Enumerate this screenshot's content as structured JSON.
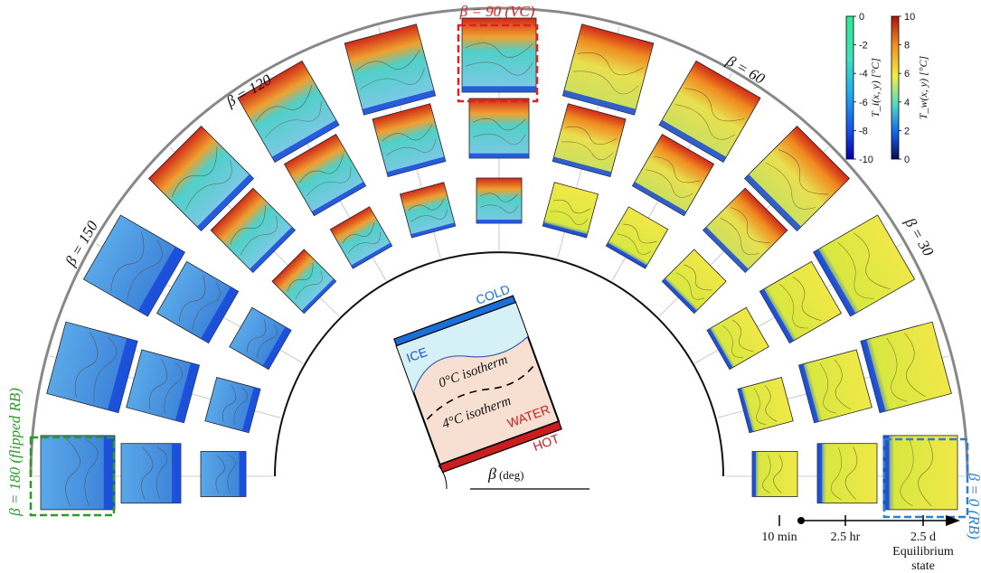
{
  "angles": {
    "top": "β = 90 (VC)",
    "b120": "β = 120",
    "b150": "β = 150",
    "b180": "β = 180 (flipped RB)",
    "b60": "β = 60",
    "b30": "β = 30",
    "b0": "β = 0 (RB)"
  },
  "schematic": {
    "cold": "COLD",
    "ice": "ICE",
    "iso0": "0°C isotherm",
    "iso4": "4°C isotherm",
    "water": "WATER",
    "hot": "HOT",
    "beta": "β",
    "beta_unit": "(deg)"
  },
  "colorbars": {
    "ice_label": "T_i(x, y) [°C]",
    "water_label": "T_w(x, y) [°C]",
    "ice_ticks": [
      "0",
      "-2",
      "-4",
      "-6",
      "-8",
      "-10"
    ],
    "water_ticks": [
      "10",
      "8",
      "6",
      "4",
      "2",
      "0"
    ],
    "ice_colors": [
      "#0000a8",
      "#1850e8",
      "#20a8f0",
      "#40e0c0",
      "#30e890"
    ],
    "water_colors": [
      "#0a0a50",
      "#1060f0",
      "#50d8c8",
      "#f0f040",
      "#f09020",
      "#b01010"
    ]
  },
  "timeline": {
    "t1": "10 min",
    "t2": "2.5 hr",
    "t3": "2.5 d",
    "t3_sub1": "Equilibrium",
    "t3_sub2": "state"
  },
  "colors": {
    "highlight_top": "#e02020",
    "highlight_left": "#2a9a2a",
    "highlight_right": "#2a7fd4"
  }
}
